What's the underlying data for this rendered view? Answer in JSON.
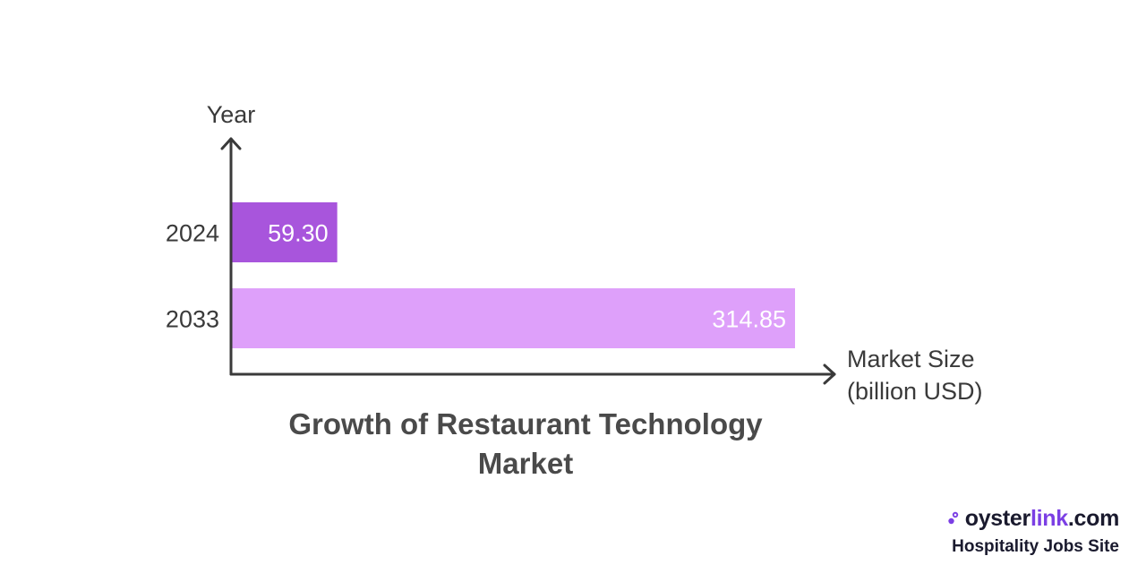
{
  "chart_data": {
    "type": "bar",
    "orientation": "horizontal",
    "title": "Growth of Restaurant Technology Market",
    "ylabel": "Year",
    "xlabel_lines": [
      "Market Size",
      "(billion USD)"
    ],
    "categories": [
      "2024",
      "2033"
    ],
    "values": [
      59.3,
      314.85
    ],
    "value_labels": [
      "59.30",
      "314.85"
    ],
    "bar_colors": [
      "#a855dc",
      "#dea0fa"
    ],
    "xlim": [
      0,
      314.85
    ],
    "grid": false,
    "legend": "none"
  },
  "colors": {
    "axis": "#3a3a3a",
    "title": "#4a4a4a",
    "label_on_bar": "#ffffff",
    "brand_text": "#1a1a2e",
    "brand_accent": "#7b3fe4"
  },
  "brand": {
    "name_part1": "oyster",
    "name_part2": "link",
    "name_part3": ".com",
    "tagline": "Hospitality Jobs Site",
    "icon": "oyster-logo-icon"
  }
}
